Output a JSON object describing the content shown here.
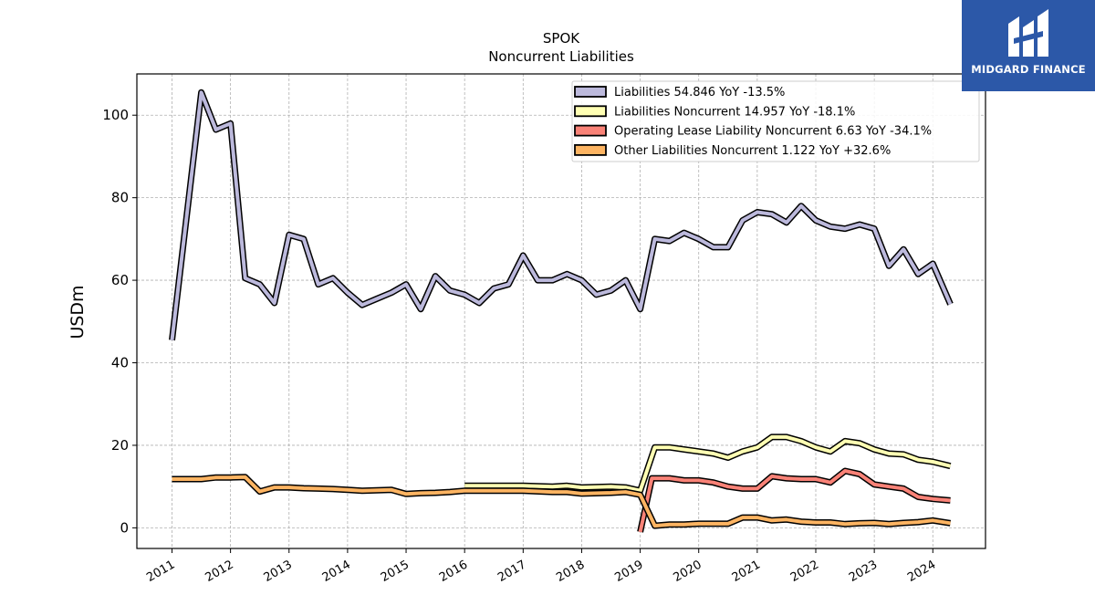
{
  "chart_data": {
    "type": "line",
    "title": "SPOK",
    "subtitle": "Noncurrent  Liabilities",
    "ylabel": "USDm",
    "xlabel": "",
    "ylim": [
      -5,
      110
    ],
    "xlim": [
      2010.4,
      2024.9
    ],
    "yticks": [
      0,
      20,
      40,
      60,
      80,
      100
    ],
    "xticks": [
      "2011",
      "2012",
      "2013",
      "2014",
      "2015",
      "2016",
      "2017",
      "2018",
      "2019",
      "2020",
      "2021",
      "2022",
      "2023",
      "2024"
    ],
    "grid": true,
    "legend_position": "top-right",
    "series": [
      {
        "name": "Liabilities  54.846 YoY -13.5%",
        "color": "#bcb9dc",
        "points": [
          [
            2011.0,
            45.5
          ],
          [
            2011.5,
            105.5
          ],
          [
            2011.75,
            96.5
          ],
          [
            2012.0,
            98.0
          ],
          [
            2012.25,
            60.5
          ],
          [
            2012.5,
            59.0
          ],
          [
            2012.75,
            54.5
          ],
          [
            2013.0,
            71.0
          ],
          [
            2013.25,
            70.0
          ],
          [
            2013.5,
            59.0
          ],
          [
            2013.75,
            60.5
          ],
          [
            2014.0,
            57.0
          ],
          [
            2014.25,
            54.0
          ],
          [
            2014.5,
            55.5
          ],
          [
            2014.75,
            57.0
          ],
          [
            2015.0,
            59.0
          ],
          [
            2015.25,
            53.0
          ],
          [
            2015.5,
            61.0
          ],
          [
            2015.75,
            57.5
          ],
          [
            2016.0,
            56.5
          ],
          [
            2016.25,
            54.5
          ],
          [
            2016.5,
            58.0
          ],
          [
            2016.75,
            59.0
          ],
          [
            2017.0,
            66.0
          ],
          [
            2017.25,
            60.0
          ],
          [
            2017.5,
            60.0
          ],
          [
            2017.75,
            61.5
          ],
          [
            2018.0,
            60.0
          ],
          [
            2018.25,
            56.5
          ],
          [
            2018.5,
            57.5
          ],
          [
            2018.75,
            60.0
          ],
          [
            2019.0,
            53.0
          ],
          [
            2019.25,
            70.0
          ],
          [
            2019.5,
            69.5
          ],
          [
            2019.75,
            71.5
          ],
          [
            2020.0,
            70.0
          ],
          [
            2020.25,
            68.0
          ],
          [
            2020.5,
            68.0
          ],
          [
            2020.75,
            74.5
          ],
          [
            2021.0,
            76.5
          ],
          [
            2021.25,
            76.0
          ],
          [
            2021.5,
            74.0
          ],
          [
            2021.75,
            78.0
          ],
          [
            2022.0,
            74.5
          ],
          [
            2022.25,
            73.0
          ],
          [
            2022.5,
            72.5
          ],
          [
            2022.75,
            73.5
          ],
          [
            2023.0,
            72.5
          ],
          [
            2023.25,
            63.5
          ],
          [
            2023.5,
            67.5
          ],
          [
            2023.75,
            61.5
          ],
          [
            2024.0,
            64.0
          ],
          [
            2024.3,
            54.2
          ]
        ]
      },
      {
        "name": "Liabilities Noncurrent  14.957 YoY -18.1%",
        "color": "#ffffb3",
        "points": [
          [
            2016.0,
            10.2
          ],
          [
            2016.5,
            10.2
          ],
          [
            2017.0,
            10.2
          ],
          [
            2017.5,
            10.0
          ],
          [
            2017.75,
            10.2
          ],
          [
            2018.0,
            9.8
          ],
          [
            2018.5,
            10.0
          ],
          [
            2018.75,
            9.8
          ],
          [
            2019.0,
            9.0
          ],
          [
            2019.25,
            19.5
          ],
          [
            2019.5,
            19.5
          ],
          [
            2019.75,
            19.0
          ],
          [
            2020.0,
            18.5
          ],
          [
            2020.25,
            18.0
          ],
          [
            2020.5,
            17.0
          ],
          [
            2020.75,
            18.5
          ],
          [
            2021.0,
            19.5
          ],
          [
            2021.25,
            22.0
          ],
          [
            2021.5,
            22.0
          ],
          [
            2021.75,
            21.0
          ],
          [
            2022.0,
            19.5
          ],
          [
            2022.25,
            18.5
          ],
          [
            2022.5,
            21.0
          ],
          [
            2022.75,
            20.5
          ],
          [
            2023.0,
            19.0
          ],
          [
            2023.25,
            18.0
          ],
          [
            2023.5,
            17.8
          ],
          [
            2023.75,
            16.5
          ],
          [
            2024.0,
            16.0
          ],
          [
            2024.3,
            14.96
          ]
        ]
      },
      {
        "name": "Operating Lease Liability Noncurrent  6.63 YoY -34.1%",
        "color": "#f98277",
        "points": [
          [
            2019.0,
            -1.0
          ],
          [
            2019.2,
            12.0
          ],
          [
            2019.5,
            12.0
          ],
          [
            2019.75,
            11.5
          ],
          [
            2020.0,
            11.5
          ],
          [
            2020.25,
            11.0
          ],
          [
            2020.5,
            10.0
          ],
          [
            2020.75,
            9.5
          ],
          [
            2021.0,
            9.5
          ],
          [
            2021.25,
            12.5
          ],
          [
            2021.5,
            12.0
          ],
          [
            2021.75,
            11.8
          ],
          [
            2022.0,
            11.8
          ],
          [
            2022.25,
            11.0
          ],
          [
            2022.5,
            13.8
          ],
          [
            2022.75,
            13.0
          ],
          [
            2023.0,
            10.5
          ],
          [
            2023.25,
            10.0
          ],
          [
            2023.5,
            9.5
          ],
          [
            2023.75,
            7.5
          ],
          [
            2024.0,
            7.0
          ],
          [
            2024.3,
            6.63
          ]
        ]
      },
      {
        "name": "Other Liabilities Noncurrent  1.122 YoY +32.6%",
        "color": "#fdb462",
        "points": [
          [
            2011.0,
            11.8
          ],
          [
            2011.5,
            11.8
          ],
          [
            2011.75,
            12.2
          ],
          [
            2012.0,
            12.2
          ],
          [
            2012.25,
            12.3
          ],
          [
            2012.5,
            8.8
          ],
          [
            2012.75,
            9.8
          ],
          [
            2013.0,
            9.8
          ],
          [
            2013.25,
            9.6
          ],
          [
            2013.5,
            9.5
          ],
          [
            2013.75,
            9.4
          ],
          [
            2014.0,
            9.2
          ],
          [
            2014.25,
            9.0
          ],
          [
            2014.5,
            9.1
          ],
          [
            2014.75,
            9.2
          ],
          [
            2015.0,
            8.2
          ],
          [
            2015.25,
            8.4
          ],
          [
            2015.5,
            8.5
          ],
          [
            2015.75,
            8.7
          ],
          [
            2016.0,
            9.0
          ],
          [
            2016.5,
            9.0
          ],
          [
            2017.0,
            9.0
          ],
          [
            2017.5,
            8.7
          ],
          [
            2017.75,
            8.7
          ],
          [
            2018.0,
            8.3
          ],
          [
            2018.5,
            8.5
          ],
          [
            2018.75,
            8.7
          ],
          [
            2019.0,
            8.0
          ],
          [
            2019.25,
            0.5
          ],
          [
            2019.5,
            0.8
          ],
          [
            2019.75,
            0.8
          ],
          [
            2020.0,
            1.0
          ],
          [
            2020.5,
            1.0
          ],
          [
            2020.75,
            2.5
          ],
          [
            2021.0,
            2.5
          ],
          [
            2021.25,
            1.8
          ],
          [
            2021.5,
            2.0
          ],
          [
            2021.75,
            1.5
          ],
          [
            2022.0,
            1.3
          ],
          [
            2022.25,
            1.3
          ],
          [
            2022.5,
            0.9
          ],
          [
            2022.75,
            1.1
          ],
          [
            2023.0,
            1.2
          ],
          [
            2023.25,
            0.9
          ],
          [
            2023.5,
            1.2
          ],
          [
            2023.75,
            1.4
          ],
          [
            2024.0,
            1.8
          ],
          [
            2024.3,
            1.12
          ]
        ]
      }
    ]
  },
  "logo": {
    "text": "MIDGARD FINANCE",
    "background": "#2c58a8"
  }
}
